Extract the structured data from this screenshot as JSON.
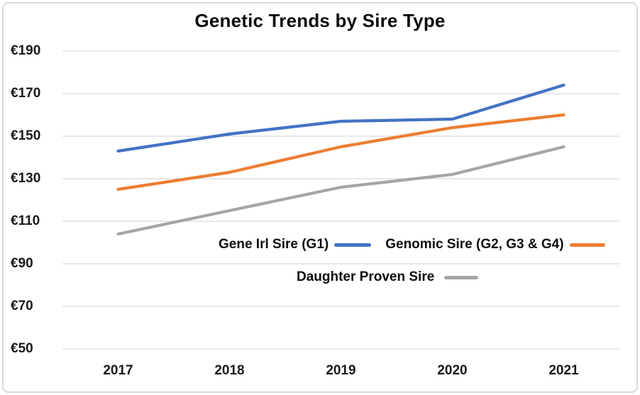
{
  "chart_data": {
    "type": "line",
    "title": "Genetic Trends by Sire Type",
    "categories": [
      "2017",
      "2018",
      "2019",
      "2020",
      "2021"
    ],
    "series": [
      {
        "name": "Gene Irl Sire (G1)",
        "color": "#4472C4",
        "values": [
          143,
          151,
          157,
          158,
          174
        ]
      },
      {
        "name": "Genomic Sire (G2, G3 & G4)",
        "color": "#ED7D31",
        "values": [
          125,
          133,
          145,
          154,
          160
        ]
      },
      {
        "name": "Daughter Proven Sire",
        "color": "#A5A5A5",
        "values": [
          104,
          115,
          126,
          132,
          145
        ]
      }
    ],
    "y_ticks": [
      {
        "label": "€190",
        "value": 190
      },
      {
        "label": "€170",
        "value": 170
      },
      {
        "label": "€150",
        "value": 150
      },
      {
        "label": "€130",
        "value": 130
      },
      {
        "label": "€110",
        "value": 110
      },
      {
        "label": "€90",
        "value": 90
      },
      {
        "label": "€70",
        "value": 70
      },
      {
        "label": "€50",
        "value": 50
      }
    ],
    "ylim": [
      50,
      190
    ],
    "xlabel": "",
    "ylabel": "",
    "grid": "horizontal-only",
    "gridline_color": "#D9D9D9",
    "legend_position": "inside-plot-lower-center"
  }
}
